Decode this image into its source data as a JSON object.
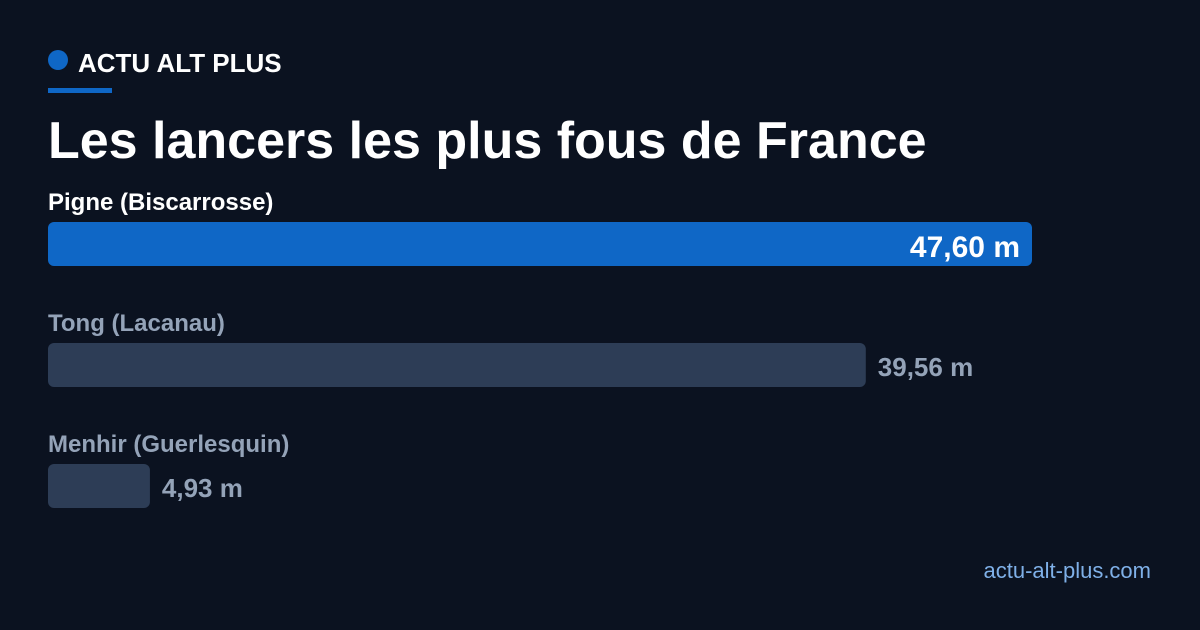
{
  "brand": "ACTU ALT PLUS",
  "chart_data": {
    "type": "hbar",
    "title": "Les lancers les plus fous de France",
    "categories": [
      "Pigne (Biscarrosse)",
      "Tong (Lacanau)",
      "Menhir (Guerlesquin)"
    ],
    "values": [
      47.6,
      39.56,
      4.93
    ],
    "value_labels": [
      "47,60 m",
      "39,56 m",
      "4,93 m"
    ],
    "colors": [
      "#0f67c6",
      "#2d3d56",
      "#2d3d56"
    ],
    "highlight": 0
  },
  "footer": "actu-alt-plus.com"
}
